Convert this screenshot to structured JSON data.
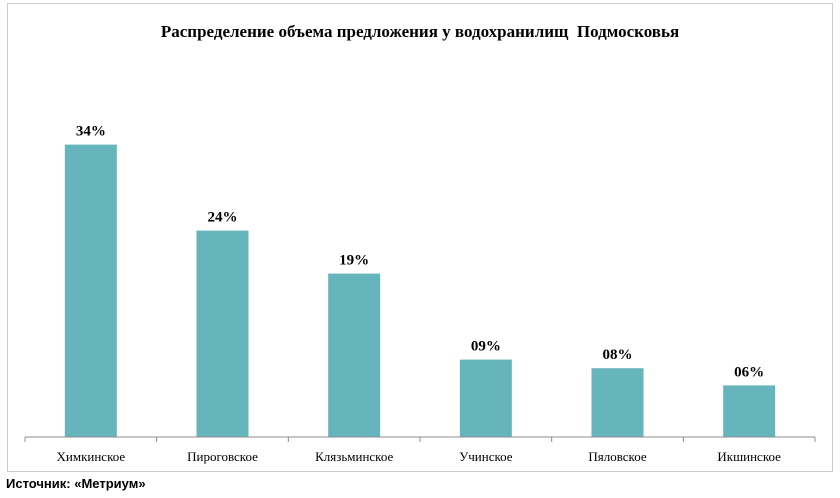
{
  "chart_data": {
    "type": "bar",
    "title": "Распределение объема предложения у водохранилищ  Подмосковья",
    "categories": [
      "Химкинское",
      "Пироговское",
      "Клязьминское",
      "Учинское",
      "Пяловское",
      "Икшинское"
    ],
    "values": [
      34,
      24,
      19,
      9,
      8,
      6
    ],
    "data_labels": [
      "34%",
      "24%",
      "19%",
      "09%",
      "08%",
      "06%"
    ],
    "xlabel": "",
    "ylabel": "",
    "ylim": [
      0,
      40
    ],
    "grid": false,
    "legend": "none",
    "bar_color": "#66b5bd"
  },
  "source": "Источник: «Метриум»"
}
